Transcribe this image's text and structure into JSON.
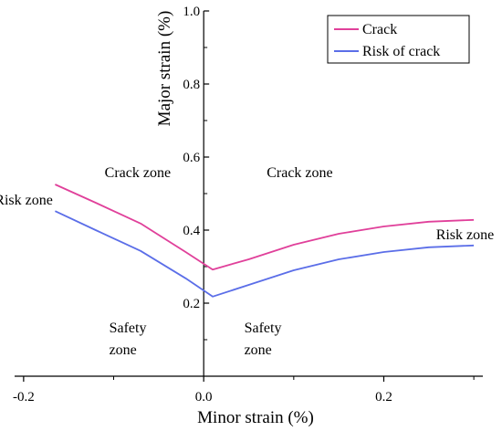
{
  "chart_data": {
    "type": "line",
    "xlabel": "Minor strain (%)",
    "ylabel": "Major strain (%)",
    "xlim": [
      -0.21,
      0.31
    ],
    "ylim": [
      0.0,
      1.0
    ],
    "x_ticks": [
      -0.2,
      0.0,
      0.2
    ],
    "x_tick_labels": [
      "-0.2",
      "0.0",
      "0.2"
    ],
    "y_ticks": [
      0.2,
      0.4,
      0.6,
      0.8,
      1.0
    ],
    "y_tick_labels": [
      "0.2",
      "0.4",
      "0.6",
      "0.8",
      "1.0"
    ],
    "legend_position": "top-right",
    "series": [
      {
        "name": "Crack",
        "color": "#e0409a",
        "points": [
          [
            -0.165,
            0.525
          ],
          [
            -0.12,
            0.475
          ],
          [
            -0.07,
            0.418
          ],
          [
            -0.02,
            0.34
          ],
          [
            0.01,
            0.292
          ],
          [
            0.05,
            0.32
          ],
          [
            0.1,
            0.36
          ],
          [
            0.15,
            0.39
          ],
          [
            0.2,
            0.41
          ],
          [
            0.25,
            0.423
          ],
          [
            0.3,
            0.428
          ]
        ]
      },
      {
        "name": "Risk of crack",
        "color": "#5b6ee8",
        "points": [
          [
            -0.165,
            0.452
          ],
          [
            -0.12,
            0.4
          ],
          [
            -0.07,
            0.343
          ],
          [
            -0.02,
            0.268
          ],
          [
            0.01,
            0.218
          ],
          [
            0.05,
            0.25
          ],
          [
            0.1,
            0.29
          ],
          [
            0.15,
            0.32
          ],
          [
            0.2,
            0.34
          ],
          [
            0.25,
            0.353
          ],
          [
            0.3,
            0.358
          ]
        ]
      }
    ],
    "annotations": [
      {
        "text": "Crack zone",
        "x": -0.11,
        "y": 0.545
      },
      {
        "text": "Crack zone",
        "x": 0.07,
        "y": 0.545
      },
      {
        "text": "Risk zone",
        "x": -0.232,
        "y": 0.47
      },
      {
        "text": "Risk zone",
        "x": 0.258,
        "y": 0.375
      },
      {
        "text": "Safety",
        "x": -0.105,
        "y": 0.12
      },
      {
        "text": "zone",
        "x": -0.105,
        "y": 0.06
      },
      {
        "text": "Safety",
        "x": 0.045,
        "y": 0.12
      },
      {
        "text": "zone",
        "x": 0.045,
        "y": 0.06
      }
    ]
  }
}
